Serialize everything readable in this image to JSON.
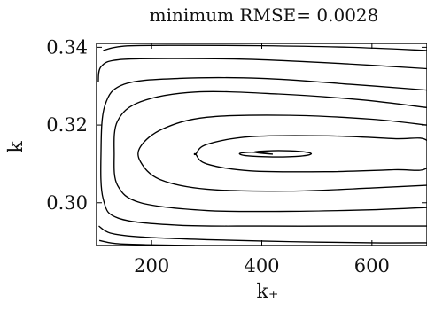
{
  "chart_data": {
    "type": "contour",
    "title": "minimum RMSE= 0.0028",
    "xlabel": "k₊",
    "ylabel": "k",
    "xlim": [
      100,
      700
    ],
    "ylim": [
      0.289,
      0.341
    ],
    "x_ticks": [
      {
        "value": 200,
        "label": "200"
      },
      {
        "value": 400,
        "label": "400"
      },
      {
        "value": 600,
        "label": "600"
      }
    ],
    "y_ticks": [
      {
        "value": 0.3,
        "label": "0.30"
      },
      {
        "value": 0.32,
        "label": "0.32"
      },
      {
        "value": 0.34,
        "label": "0.34"
      }
    ],
    "grid": false,
    "legend": "none",
    "minimum": {
      "x": 420,
      "y": 0.3125
    },
    "contours": [
      {
        "level": 1,
        "closed": true,
        "points": [
          [
            420,
            0.3125
          ],
          [
            385,
            0.313
          ],
          [
            360,
            0.3127
          ],
          [
            372,
            0.3121
          ],
          [
            420,
            0.3118
          ],
          [
            470,
            0.312
          ],
          [
            490,
            0.3126
          ],
          [
            470,
            0.3132
          ],
          [
            420,
            0.3134
          ],
          [
            385,
            0.313
          ]
        ]
      },
      {
        "level": 2,
        "closed": true,
        "points": [
          [
            280,
            0.3125
          ],
          [
            300,
            0.315
          ],
          [
            380,
            0.317
          ],
          [
            520,
            0.3172
          ],
          [
            640,
            0.3165
          ],
          [
            700,
            0.316
          ],
          [
            700,
            0.309
          ],
          [
            640,
            0.3085
          ],
          [
            520,
            0.308
          ],
          [
            380,
            0.3082
          ],
          [
            300,
            0.31
          ],
          [
            280,
            0.3125
          ]
        ]
      },
      {
        "level": 3,
        "closed": false,
        "points": [
          [
            700,
            0.32
          ],
          [
            600,
            0.3215
          ],
          [
            450,
            0.3225
          ],
          [
            300,
            0.322
          ],
          [
            220,
            0.319
          ],
          [
            180,
            0.3145
          ],
          [
            180,
            0.3105
          ],
          [
            215,
            0.306
          ],
          [
            300,
            0.3035
          ],
          [
            450,
            0.303
          ],
          [
            600,
            0.3038
          ],
          [
            700,
            0.3045
          ]
        ]
      },
      {
        "level": 4,
        "closed": false,
        "points": [
          [
            700,
            0.3245
          ],
          [
            580,
            0.3265
          ],
          [
            430,
            0.328
          ],
          [
            280,
            0.3285
          ],
          [
            180,
            0.326
          ],
          [
            138,
            0.321
          ],
          [
            132,
            0.3125
          ],
          [
            138,
            0.3045
          ],
          [
            180,
            0.3
          ],
          [
            300,
            0.298
          ],
          [
            450,
            0.2978
          ],
          [
            600,
            0.2982
          ],
          [
            700,
            0.2988
          ]
        ]
      },
      {
        "level": 5,
        "closed": false,
        "points": [
          [
            700,
            0.329
          ],
          [
            560,
            0.3305
          ],
          [
            400,
            0.332
          ],
          [
            250,
            0.332
          ],
          [
            150,
            0.3305
          ],
          [
            115,
            0.325
          ],
          [
            108,
            0.3125
          ],
          [
            112,
            0.301
          ],
          [
            140,
            0.296
          ],
          [
            250,
            0.2942
          ],
          [
            400,
            0.294
          ],
          [
            560,
            0.294
          ],
          [
            700,
            0.294
          ]
        ]
      },
      {
        "level": 6,
        "closed": false,
        "points": [
          [
            700,
            0.3345
          ],
          [
            560,
            0.3357
          ],
          [
            400,
            0.3368
          ],
          [
            250,
            0.3371
          ],
          [
            140,
            0.3368
          ],
          [
            108,
            0.335
          ],
          [
            103,
            0.331
          ]
        ]
      },
      {
        "level": 7,
        "closed": false,
        "points": [
          [
            700,
            0.3392
          ],
          [
            560,
            0.34
          ],
          [
            400,
            0.3404
          ],
          [
            250,
            0.3405
          ],
          [
            150,
            0.3403
          ],
          [
            112,
            0.3392
          ]
        ]
      },
      {
        "level": 8,
        "closed": false,
        "points": [
          [
            700,
            0.2897
          ],
          [
            600,
            0.2897
          ],
          [
            450,
            0.29
          ],
          [
            300,
            0.2905
          ],
          [
            180,
            0.2912
          ],
          [
            125,
            0.2922
          ],
          [
            104,
            0.294
          ]
        ]
      },
      {
        "level": 9,
        "closed": false,
        "points": [
          [
            278,
            0.289
          ],
          [
            190,
            0.2892
          ],
          [
            135,
            0.2895
          ],
          [
            105,
            0.2903
          ]
        ]
      }
    ]
  }
}
